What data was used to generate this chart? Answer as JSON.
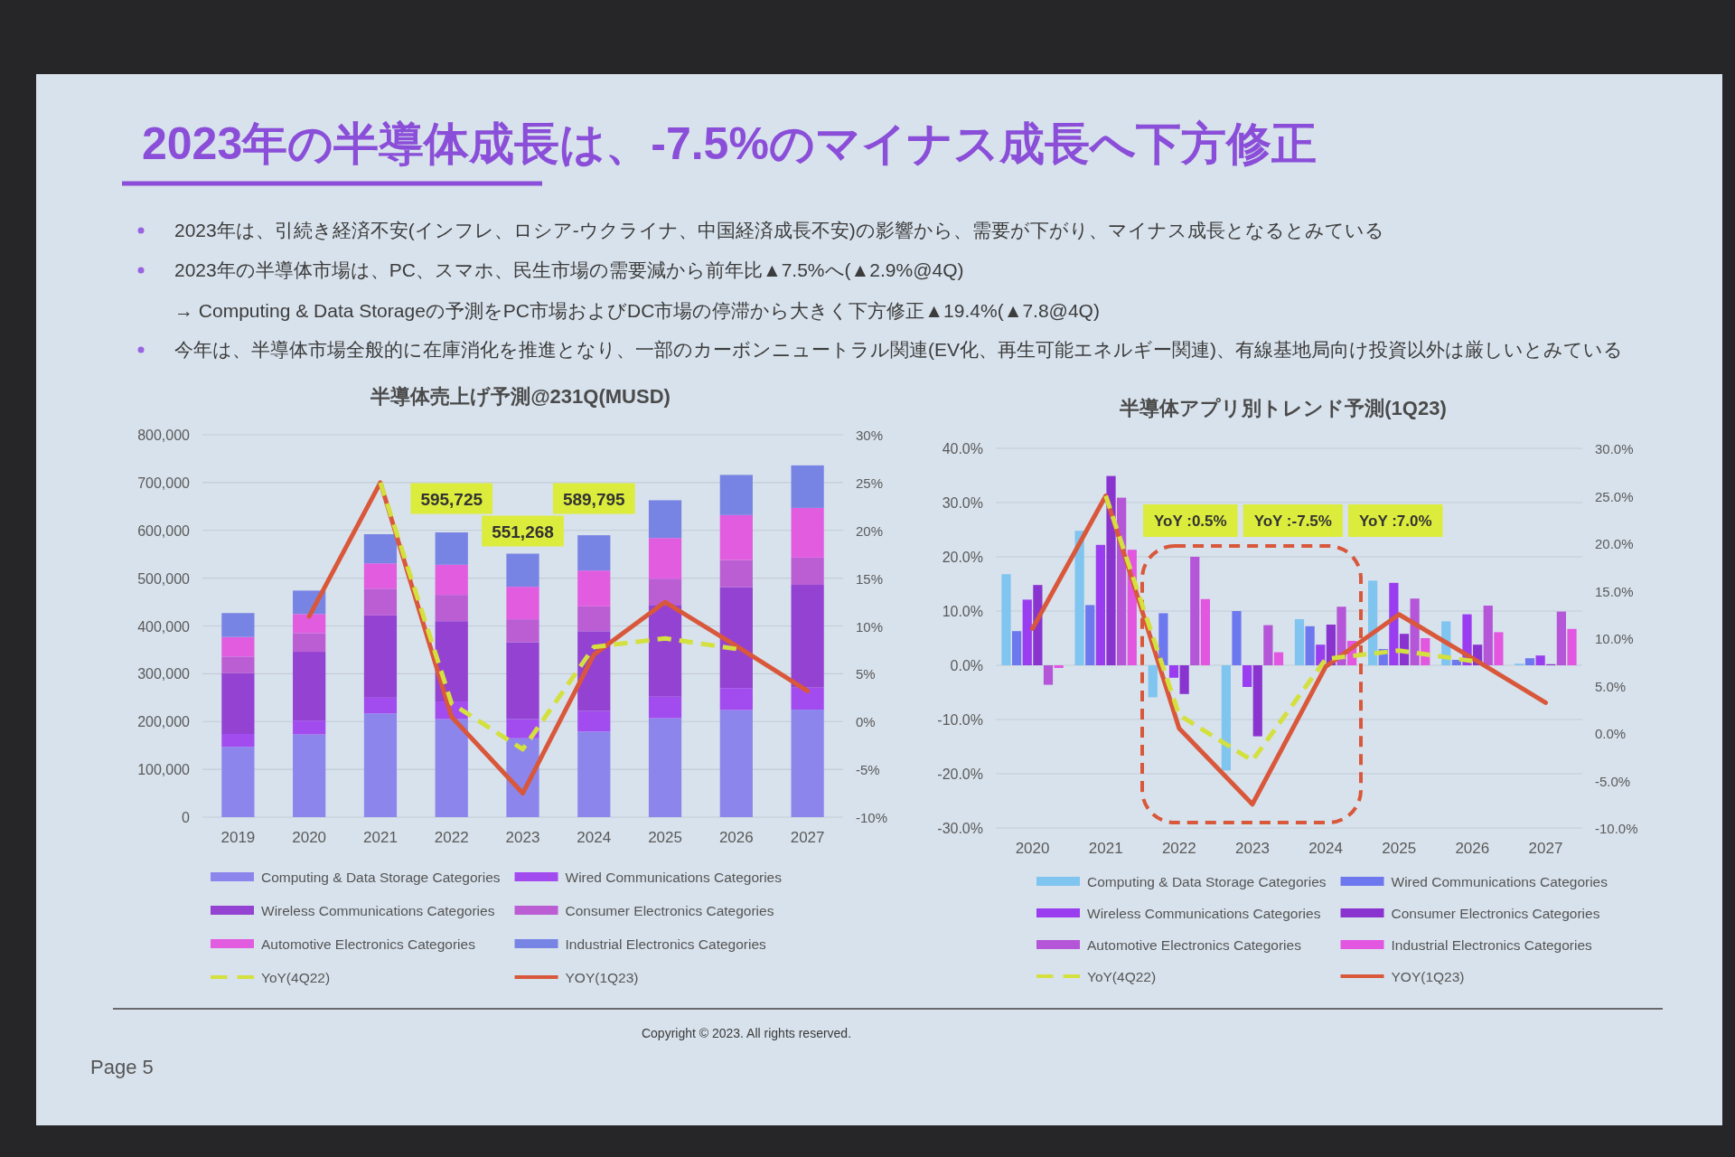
{
  "chart_data": [
    {
      "type": "other",
      "title": "2023年の半導体成長は、-7.5%のマイナス成長へ下方修正",
      "annotations": [
        "2023年は、引続き経済不安(インフレ、ロシア-ウクライナ、中国経済成長不安)の影響から、需要が下がり、マイナス成長となるとみている",
        "2023年の半導体市場は、PC、スマホ、民生市場の需要減から前年比▲7.5%へ(▲2.9%@4Q)",
        "→ Computing & Data Storageの予測をPC市場およびDC市場の停滞から大きく下方修正▲19.4%(▲7.8@4Q)",
        "今年は、半導体市場全般的に在庫消化を推進となり、一部のカーボンニュートラル関連(EV化、再生可能エネルギー関連)、有線基地局向け投資以外は厳しいとみている",
        "Copyright © 2023. All rights reserved.",
        "Page 5"
      ]
    },
    {
      "type": "bar",
      "stacked": true,
      "title": "半導体売上げ予測@231Q(MUSD)",
      "categories": [
        "2019",
        "2020",
        "2021",
        "2022",
        "2023",
        "2024",
        "2025",
        "2026",
        "2027"
      ],
      "series": [
        {
          "name": "Computing & Data Storage Categories",
          "color": "#8c86ec",
          "values": [
            147000,
            173000,
            217000,
            205000,
            165000,
            179000,
            207000,
            224000,
            225000
          ]
        },
        {
          "name": "Wired Communications Categories",
          "color": "#a24cf0",
          "values": [
            27000,
            29000,
            33000,
            37000,
            40000,
            43000,
            45000,
            46000,
            46000
          ]
        },
        {
          "name": "Wireless Communications Categories",
          "color": "#9442d2",
          "values": [
            127000,
            144000,
            172000,
            168000,
            161000,
            167000,
            192000,
            211000,
            215000
          ]
        },
        {
          "name": "Consumer Electronics Categories",
          "color": "#bb5ed4",
          "values": [
            35000,
            39000,
            56000,
            55000,
            48000,
            52000,
            55000,
            57000,
            57000
          ]
        },
        {
          "name": "Automotive Electronics Categories",
          "color": "#e25ce0",
          "values": [
            41000,
            40000,
            53000,
            63000,
            68000,
            75000,
            85000,
            94000,
            104000
          ]
        },
        {
          "name": "Industrial Electronics Categories",
          "color": "#7884e4",
          "values": [
            50000,
            49000,
            61000,
            67725,
            69268,
            73795,
            79000,
            84000,
            89000
          ]
        },
        {
          "name": "YoY(4Q22)",
          "type": "line",
          "axis": "y2",
          "color": "#d3e03e",
          "line_style": "dashed",
          "values": [
            null,
            null,
            25.0,
            1.9,
            -2.9,
            7.8,
            8.7,
            7.6,
            null
          ]
        },
        {
          "name": "YOY(1Q23)",
          "type": "line",
          "axis": "y2",
          "color": "#d9573a",
          "line_style": "solid",
          "values": [
            null,
            11.0,
            25.0,
            0.5,
            -7.5,
            7.0,
            12.5,
            7.9,
            3.2
          ]
        }
      ],
      "totals": [
        null,
        null,
        null,
        "595,725",
        "551,268",
        "589,795",
        null,
        null,
        null
      ],
      "ylim": [
        0,
        800000
      ],
      "yticks": [
        0,
        {
          "value": 100000,
          "label": "100,000"
        },
        {
          "value": 200000,
          "label": "200,000"
        },
        {
          "value": 300000,
          "label": "300,000"
        },
        {
          "value": 400000,
          "label": "400,000"
        },
        {
          "value": 500000,
          "label": "500,000"
        },
        {
          "value": 600000,
          "label": "600,000"
        },
        {
          "value": 700000,
          "label": "700,000"
        },
        {
          "value": 800000,
          "label": "800,000"
        }
      ],
      "y2lim": [
        -10,
        30
      ],
      "y2ticks": [
        {
          "value": -10,
          "label": "-10%"
        },
        {
          "value": -5,
          "label": "-5%"
        },
        {
          "value": 0,
          "label": "0%"
        },
        {
          "value": 5,
          "label": "5%"
        },
        {
          "value": 10,
          "label": "10%"
        },
        {
          "value": 15,
          "label": "15%"
        },
        {
          "value": 20,
          "label": "20%"
        },
        {
          "value": 25,
          "label": "25%"
        },
        {
          "value": 30,
          "label": "30%"
        }
      ],
      "grid": "y",
      "legend": "bottom"
    },
    {
      "type": "bar",
      "title": "半導体アプリ別トレンド予測(1Q23)",
      "categories": [
        "2020",
        "2021",
        "2022",
        "2023",
        "2024",
        "2025",
        "2026",
        "2027"
      ],
      "series": [
        {
          "name": "Computing & Data Storage Categories",
          "color": "#80c4f0",
          "values": [
            16.8,
            24.8,
            -5.9,
            -19.4,
            8.5,
            15.6,
            8.1,
            0.3
          ]
        },
        {
          "name": "Wired Communications Categories",
          "color": "#6e78ee",
          "values": [
            6.3,
            11.1,
            9.6,
            10.0,
            7.2,
            3.0,
            1.0,
            1.3
          ]
        },
        {
          "name": "Wireless Communications Categories",
          "color": "#9a3cf0",
          "values": [
            12.1,
            22.2,
            -2.3,
            -4.0,
            3.8,
            15.2,
            9.4,
            1.8
          ]
        },
        {
          "name": "Consumer Electronics Categories",
          "color": "#8a34d0",
          "values": [
            14.8,
            34.9,
            -5.3,
            -13.1,
            7.5,
            5.8,
            3.8,
            0.2
          ]
        },
        {
          "name": "Automotive Electronics Categories",
          "color": "#b556d8",
          "values": [
            -3.6,
            30.9,
            20.0,
            7.4,
            10.8,
            12.3,
            11.0,
            9.9
          ]
        },
        {
          "name": "Industrial Electronics Categories",
          "color": "#e256e0",
          "values": [
            -0.5,
            21.3,
            12.2,
            2.4,
            4.5,
            5.0,
            6.1,
            6.7
          ]
        },
        {
          "name": "YoY(4Q22)",
          "type": "line",
          "axis": "y2",
          "color": "#d3e03e",
          "line_style": "dashed",
          "values": [
            null,
            25.0,
            1.9,
            -2.9,
            7.8,
            8.7,
            7.6,
            null
          ]
        },
        {
          "name": "YOY(1Q23)",
          "type": "line",
          "axis": "y2",
          "color": "#d9573a",
          "line_style": "solid",
          "values": [
            11.0,
            25.0,
            0.5,
            -7.5,
            7.0,
            12.5,
            7.9,
            3.2
          ]
        }
      ],
      "annotations": [
        "YoY :0.5%",
        "YoY :-7.5%",
        "YoY :7.0%"
      ],
      "ylim": [
        -30,
        40
      ],
      "yticks": [
        {
          "value": -30,
          "label": "-30.0%"
        },
        {
          "value": -20,
          "label": "-20.0%"
        },
        {
          "value": -10,
          "label": "-10.0%"
        },
        {
          "value": 0,
          "label": "0.0%"
        },
        {
          "value": 10,
          "label": "10.0%"
        },
        {
          "value": 20,
          "label": "20.0%"
        },
        {
          "value": 30,
          "label": "30.0%"
        },
        {
          "value": 40,
          "label": "40.0%"
        }
      ],
      "y2lim": [
        -10,
        30
      ],
      "y2ticks": [
        {
          "value": -10,
          "label": "-10.0%"
        },
        {
          "value": -5,
          "label": "-5.0%"
        },
        {
          "value": 0,
          "label": "0.0%"
        },
        {
          "value": 5,
          "label": "5.0%"
        },
        {
          "value": 10,
          "label": "10.0%"
        },
        {
          "value": 15,
          "label": "15.0%"
        },
        {
          "value": 20,
          "label": "20.0%"
        },
        {
          "value": 25,
          "label": "25.0%"
        },
        {
          "value": 30,
          "label": "30.0%"
        }
      ],
      "grid": "y",
      "legend": "bottom"
    }
  ]
}
